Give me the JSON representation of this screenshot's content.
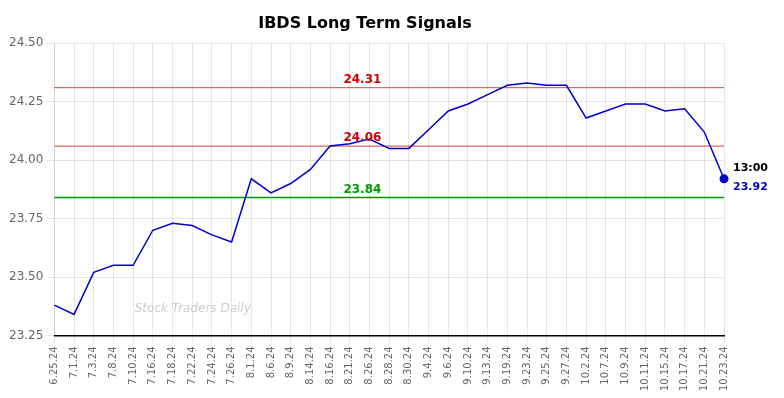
{
  "chart_data": {
    "type": "line",
    "title": "IBDS Long Term Signals",
    "categories": [
      "6.25.24",
      "7.1.24",
      "7.3.24",
      "7.8.24",
      "7.10.24",
      "7.16.24",
      "7.18.24",
      "7.22.24",
      "7.24.24",
      "7.26.24",
      "8.1.24",
      "8.6.24",
      "8.9.24",
      "8.14.24",
      "8.16.24",
      "8.21.24",
      "8.26.24",
      "8.28.24",
      "8.30.24",
      "9.4.24",
      "9.6.24",
      "9.10.24",
      "9.13.24",
      "9.19.24",
      "9.23.24",
      "9.25.24",
      "9.27.24",
      "10.2.24",
      "10.7.24",
      "10.9.24",
      "10.11.24",
      "10.15.24",
      "10.17.24",
      "10.21.24",
      "10.23.24"
    ],
    "values": [
      23.38,
      23.34,
      23.52,
      23.55,
      23.55,
      23.7,
      23.73,
      23.72,
      23.68,
      23.65,
      23.92,
      23.86,
      23.9,
      23.96,
      24.06,
      24.07,
      24.09,
      24.05,
      24.05,
      24.13,
      24.21,
      24.24,
      24.28,
      24.32,
      24.33,
      24.32,
      24.32,
      24.18,
      24.21,
      24.24,
      24.24,
      24.21,
      24.22,
      24.12,
      23.92
    ],
    "color": "#0000cc",
    "ylim": [
      23.25,
      24.5
    ],
    "yticks": [
      23.25,
      {
        "value": 23.5,
        "label": "23.50"
      },
      23.75,
      {
        "value": 24.0,
        "label": "24.00"
      },
      24.25,
      {
        "value": 24.5,
        "label": "24.50"
      }
    ],
    "grid": true,
    "lines": [
      {
        "value": 23.84,
        "label": "23.84",
        "color": "#009900"
      },
      {
        "value": 24.06,
        "label": "24.06",
        "color": "#cc0000"
      },
      {
        "value": 24.31,
        "label": "24.31",
        "color": "#cc0000"
      }
    ],
    "annotations": [
      {
        "text": "13:00",
        "x": "10.23.24",
        "y": 23.92,
        "color": "#000000"
      },
      {
        "text": "23.92",
        "x": "10.23.24",
        "y": 23.92,
        "color": "#0000cc",
        "marker": "circle"
      },
      {
        "text": "Stock Traders Daily",
        "color": "#cccccc"
      }
    ]
  }
}
